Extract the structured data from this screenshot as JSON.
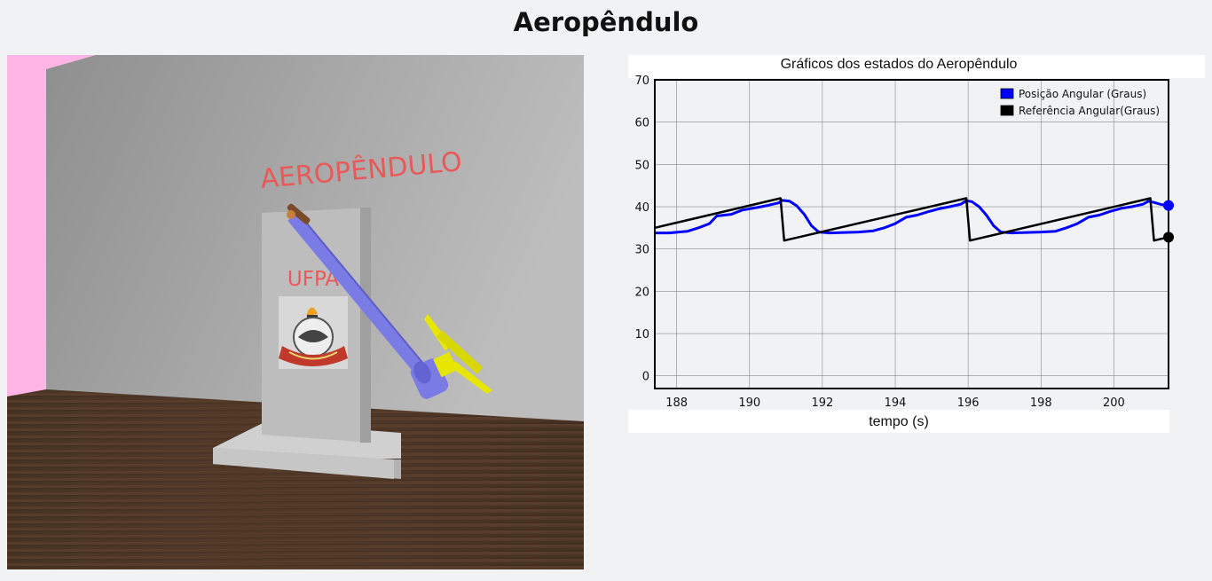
{
  "page": {
    "title": "Aeropêndulo"
  },
  "scene": {
    "wall_text": "AEROPÊNDULO",
    "board_text": "UFPA",
    "colors": {
      "pink_wall": "#ffb6e6",
      "wall": "#a9a9a9",
      "floor": "#4a3324",
      "board": "#b9b9b9",
      "arm": "#7b7be6",
      "propeller": "#e6e600",
      "text_red": "#e85a5a"
    }
  },
  "chart_data": {
    "type": "line",
    "title": "Gráficos dos estados do Aeropêndulo",
    "xlabel": "tempo (s)",
    "ylabel": "",
    "xlim": [
      187.4,
      201.5
    ],
    "ylim": [
      -3,
      70
    ],
    "xticks": [
      188,
      190,
      192,
      194,
      196,
      198,
      200
    ],
    "yticks": [
      0,
      10,
      20,
      30,
      40,
      50,
      60,
      70
    ],
    "grid": true,
    "legend_position": "top-right",
    "series": [
      {
        "name": "Posição Angular (Graus)",
        "color": "#0000ff",
        "x": [
          187.4,
          187.8,
          188.3,
          188.6,
          188.9,
          189.1,
          189.5,
          189.8,
          190.2,
          190.5,
          190.8,
          190.9,
          191.1,
          191.3,
          191.5,
          191.7,
          191.9,
          192.2,
          192.6,
          193.0,
          193.4,
          193.7,
          194.0,
          194.3,
          194.6,
          194.9,
          195.2,
          195.5,
          195.8,
          195.95,
          196.1,
          196.3,
          196.5,
          196.7,
          196.9,
          197.2,
          197.6,
          198.0,
          198.4,
          198.7,
          199.0,
          199.3,
          199.6,
          199.9,
          200.2,
          200.5,
          200.8,
          200.95,
          201.1,
          201.3,
          201.5
        ],
        "y": [
          33.8,
          33.8,
          34.2,
          35.0,
          36.0,
          37.8,
          38.2,
          39.2,
          39.8,
          40.3,
          40.9,
          41.5,
          41.3,
          40.2,
          38.2,
          35.5,
          34.0,
          33.8,
          33.9,
          34.0,
          34.3,
          35.0,
          36.0,
          37.5,
          38.0,
          38.8,
          39.5,
          40.0,
          40.6,
          41.4,
          41.2,
          40.0,
          38.0,
          35.5,
          34.0,
          33.8,
          33.9,
          34.0,
          34.2,
          35.0,
          36.0,
          37.5,
          38.0,
          38.9,
          39.6,
          40.0,
          40.6,
          41.3,
          41.0,
          40.5,
          40.3
        ]
      },
      {
        "name": "Referência Angular(Graus)",
        "color": "#000000",
        "x": [
          187.4,
          190.85,
          190.95,
          195.95,
          196.05,
          201.0,
          201.1,
          201.5
        ],
        "y": [
          35.0,
          42.0,
          32.0,
          42.0,
          32.0,
          42.0,
          32.0,
          32.8
        ]
      }
    ],
    "current_points": [
      {
        "x": 201.5,
        "y": 40.3,
        "color": "#0000ff"
      },
      {
        "x": 201.5,
        "y": 32.8,
        "color": "#000000"
      }
    ]
  }
}
